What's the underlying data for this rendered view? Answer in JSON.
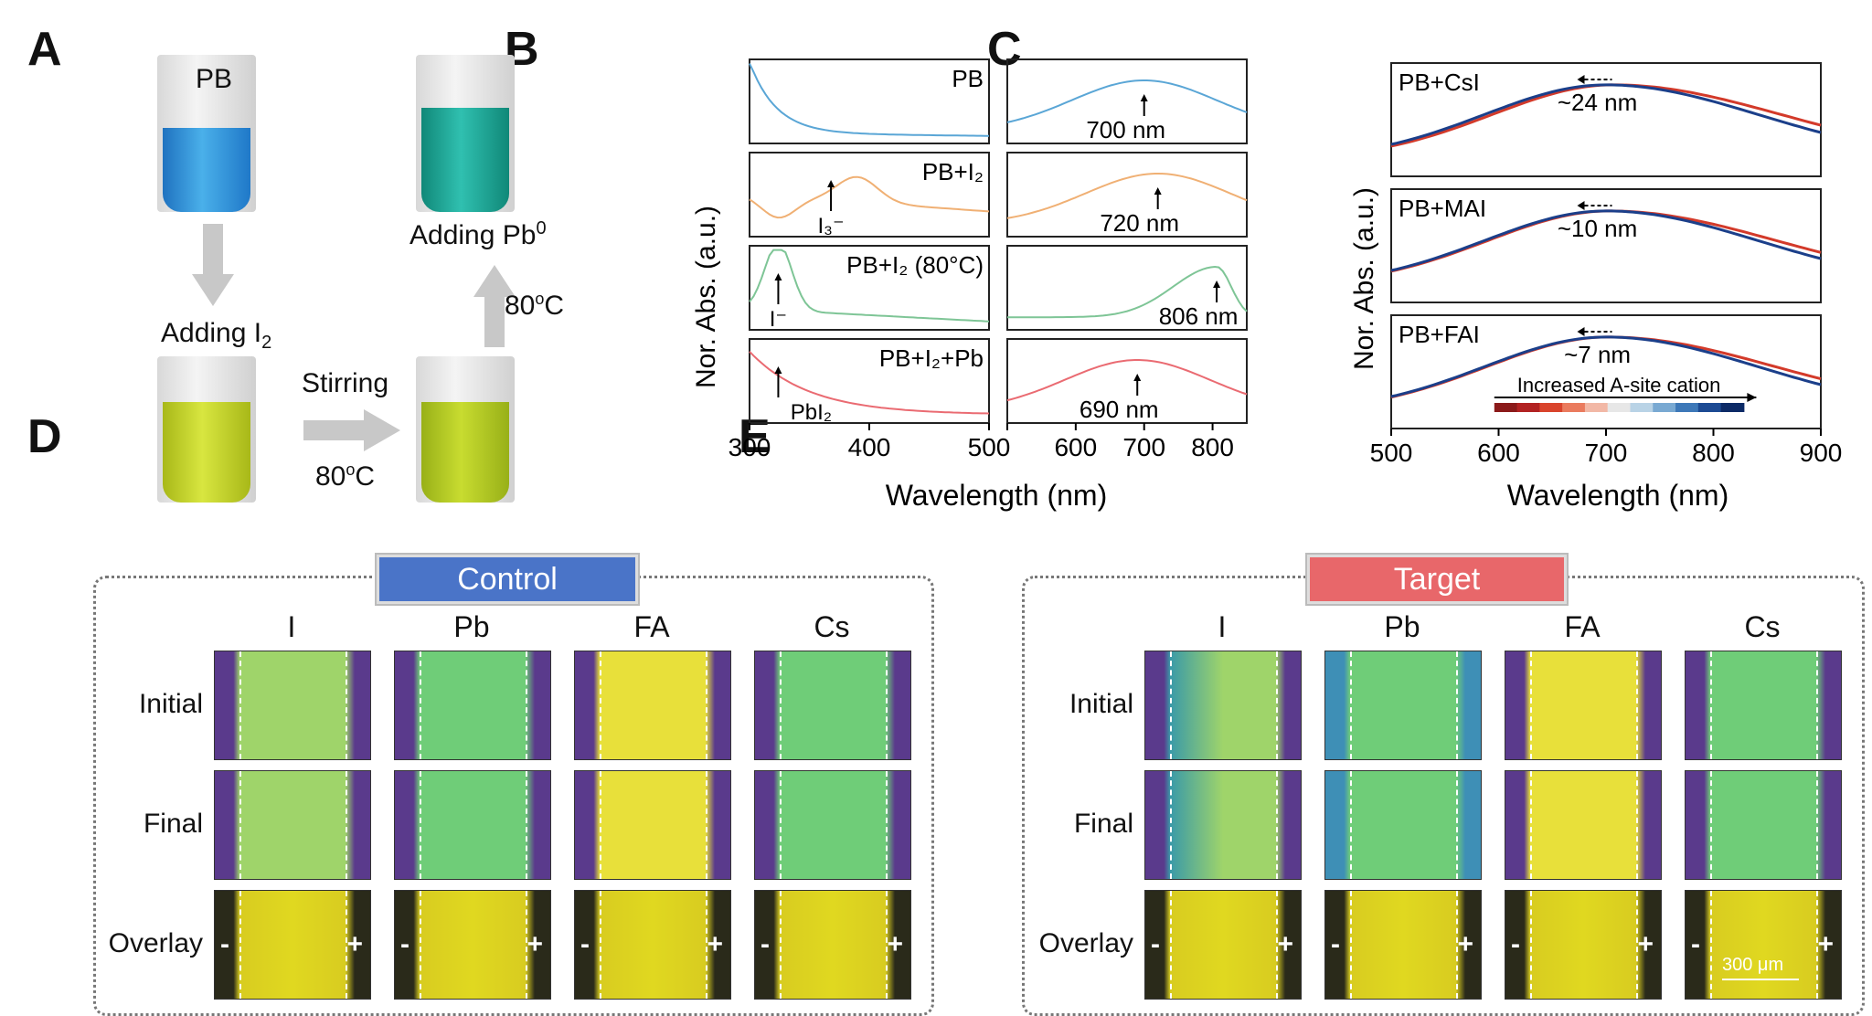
{
  "panels": {
    "A": "A",
    "B": "B",
    "C": "C",
    "D": "D",
    "E": "E"
  },
  "panel_a": {
    "vial_pb_label": "PB",
    "step1": "Adding I",
    "step1_sub": "2",
    "stirring": "Stirring",
    "temp1": "80",
    "temp1_sup": "o",
    "temp1_unit": "C",
    "temp2": "80",
    "temp2_sup": "o",
    "temp2_unit": "C",
    "step3": "Adding Pb",
    "step3_sup": "0",
    "colors": {
      "pb": "#3aa0dc",
      "i2": "#c9d62a",
      "final": "#1aa89a"
    }
  },
  "panel_b": {
    "ylabel": "Nor. Abs. (a.u.)",
    "xlabel": "Wavelength (nm)",
    "left_ticks": [
      "300",
      "400",
      "500"
    ],
    "right_ticks": [
      "500",
      "600",
      "700",
      "800"
    ],
    "rows": [
      {
        "label": "PB",
        "peak": "700 nm",
        "color": "#5aa6d6"
      },
      {
        "label": "PB+I₂",
        "peak": "720 nm",
        "color": "#f0b074",
        "anno": "I₃⁻"
      },
      {
        "label": "PB+I₂ (80°C)",
        "peak": "806 nm",
        "color": "#7ec596",
        "anno": "I⁻"
      },
      {
        "label": "PB+I₂+Pb",
        "peak": "690 nm",
        "color": "#ea6b72",
        "anno": "PbI₂"
      }
    ]
  },
  "panel_c": {
    "ylabel": "Nor. Abs. (a.u.)",
    "xlabel": "Wavelength (nm)",
    "ticks": [
      "500",
      "600",
      "700",
      "800",
      "900"
    ],
    "rows": [
      {
        "label": "PB+CsI",
        "shift": "~24 nm"
      },
      {
        "label": "PB+MAI",
        "shift": "~10 nm"
      },
      {
        "label": "PB+FAI",
        "shift": "~7 nm"
      }
    ],
    "colorbar_label": "Increased A-site cation"
  },
  "panel_d": {
    "title": "Control",
    "color": "#4a74c8"
  },
  "panel_e": {
    "title": "Target",
    "color": "#e8676a",
    "scalebar": "300 μm"
  },
  "columns": [
    "I",
    "Pb",
    "FA",
    "Cs"
  ],
  "rows": [
    "Initial",
    "Final",
    "Overlay"
  ],
  "signs": {
    "minus": "-",
    "plus": "+"
  },
  "chart_data": [
    {
      "type": "line",
      "title": "",
      "xlabel": "Wavelength (nm)",
      "ylabel": "Nor. Abs. (a.u.)",
      "xlim_left": [
        300,
        500
      ],
      "xlim_right": [
        500,
        850
      ],
      "series": [
        {
          "name": "PB",
          "peak_nm": 700
        },
        {
          "name": "PB+I₂",
          "peak_nm": 720
        },
        {
          "name": "PB+I₂ (80°C)",
          "peak_nm": 806
        },
        {
          "name": "PB+I₂+Pb",
          "peak_nm": 690
        }
      ]
    },
    {
      "type": "line",
      "title": "",
      "xlabel": "Wavelength (nm)",
      "ylabel": "Nor. Abs. (a.u.)",
      "xlim": [
        500,
        900
      ],
      "series": [
        {
          "name": "PB+CsI",
          "shift": "~24 nm"
        },
        {
          "name": "PB+MAI",
          "shift": "~10 nm"
        },
        {
          "name": "PB+FAI",
          "shift": "~7 nm"
        }
      ]
    }
  ]
}
